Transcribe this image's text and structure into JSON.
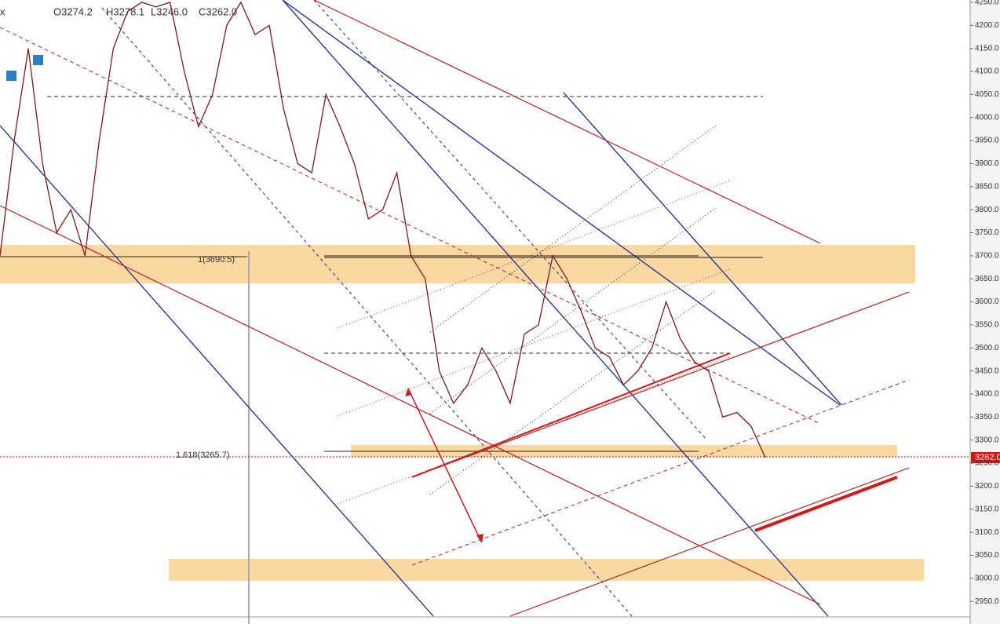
{
  "chart_data": {
    "type": "line",
    "ohlc": [
      "O3274.2",
      "H3278.1",
      "L3246.0",
      "C3262.0"
    ],
    "annotations": [
      "1(3690.5)",
      "1.618(3265.7)"
    ],
    "price_label": "3262.0",
    "color": "#7a1a1a",
    "values": [
      3700,
      3950,
      4150,
      3900,
      3750,
      3800,
      3700,
      3950,
      4150,
      4230,
      4250,
      4240,
      4250,
      4100,
      3980,
      4050,
      4200,
      4250,
      4180,
      4200,
      4020,
      3900,
      3880,
      4050,
      3980,
      3900,
      3780,
      3800,
      3880,
      3700,
      3650,
      3450,
      3380,
      3420,
      3500,
      3450,
      3380,
      3530,
      3550,
      3700,
      3650,
      3580,
      3500,
      3480,
      3420,
      3450,
      3500,
      3600,
      3520,
      3470,
      3450,
      3350,
      3360,
      3330,
      3262
    ],
    "ylim": [
      2901,
      4255
    ],
    "yticks": [
      {
        "value": 2950,
        "label": "2950.0"
      },
      {
        "value": 3000,
        "label": "3000.0"
      },
      {
        "value": 3050,
        "label": "3050.0"
      },
      {
        "value": 3100,
        "label": "3100.0"
      },
      {
        "value": 3150,
        "label": "3150.0"
      },
      {
        "value": 3200,
        "label": "3200.0"
      },
      {
        "value": 3250,
        "label": "3250.0"
      },
      {
        "value": 3300,
        "label": "3300.0"
      },
      {
        "value": 3350,
        "label": "3350.0"
      },
      {
        "value": 3400,
        "label": "3400.0"
      },
      {
        "value": 3450,
        "label": "3450.0"
      },
      {
        "value": 3500,
        "label": "3500.0"
      },
      {
        "value": 3550,
        "label": "3550.0"
      },
      {
        "value": 3600,
        "label": "3600.0"
      },
      {
        "value": 3650,
        "label": "3650.0"
      },
      {
        "value": 3700,
        "label": "3700.0"
      },
      {
        "value": 3750,
        "label": "3750.0"
      },
      {
        "value": 3800,
        "label": "3800.0"
      },
      {
        "value": 3850,
        "label": "3850.0"
      },
      {
        "value": 3900,
        "label": "3900.0"
      },
      {
        "value": 3950,
        "label": "3950.0"
      },
      {
        "value": 4000,
        "label": "4000.0"
      },
      {
        "value": 4050,
        "label": "4050.0"
      },
      {
        "value": 4100,
        "label": "4100.0"
      },
      {
        "value": 4150,
        "label": "4150.0"
      },
      {
        "value": 4200,
        "label": "4200.0"
      },
      {
        "value": 4250,
        "label": "4250.0"
      }
    ]
  }
}
